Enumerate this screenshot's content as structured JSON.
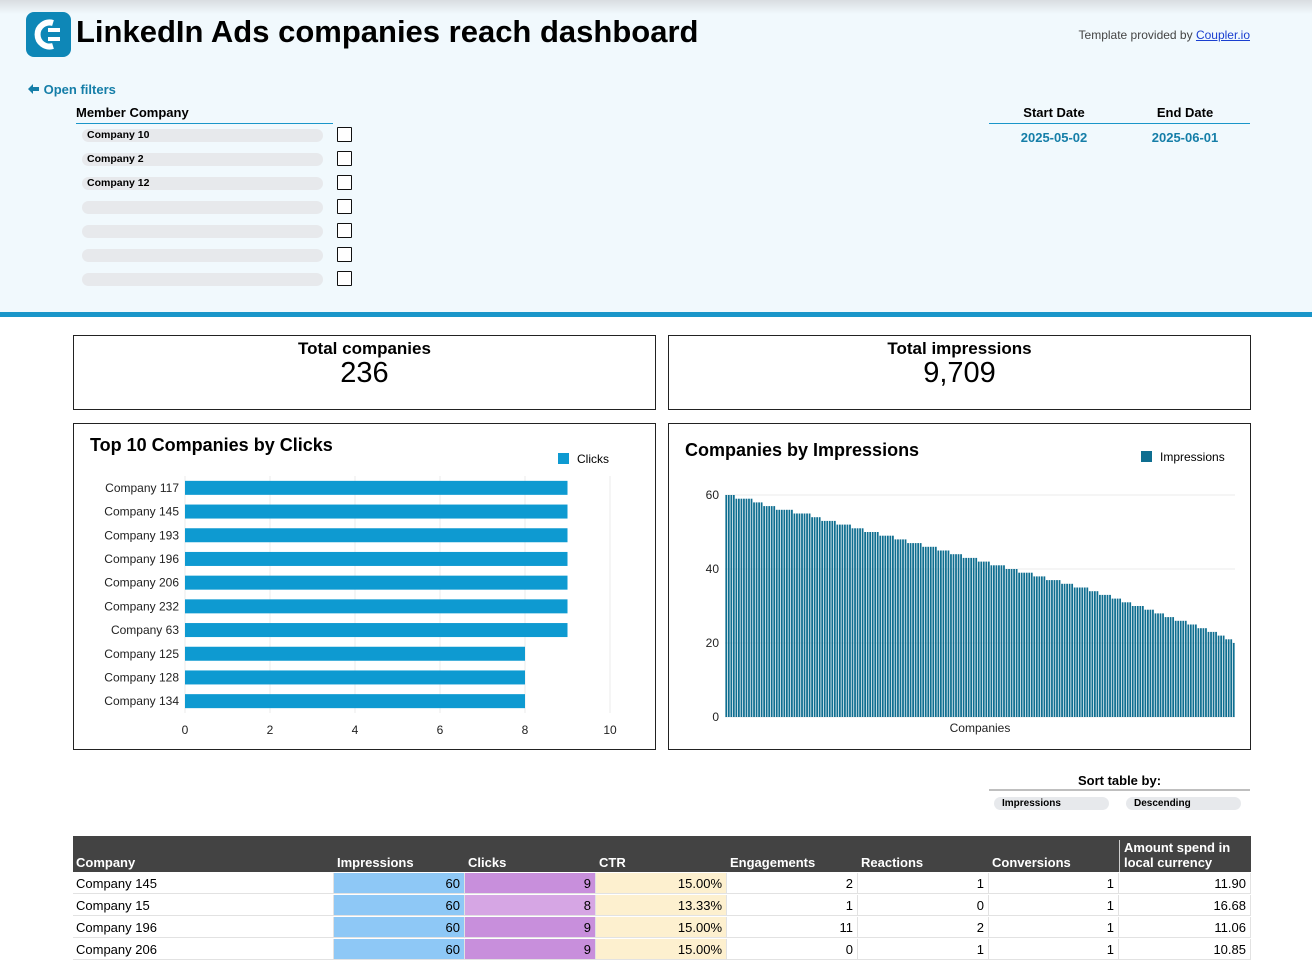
{
  "header": {
    "title": "LinkedIn Ads companies reach dashboard",
    "credit_prefix": "Template provided by",
    "credit_link": "Coupler.io",
    "open_filters": "Open filters"
  },
  "filters": {
    "member_company_label": "Member Company",
    "member_companies": [
      "Company 10",
      "Company 2",
      "Company 12",
      "",
      "",
      "",
      ""
    ],
    "start_date_label": "Start Date",
    "end_date_label": "End Date",
    "start_date": "2025-05-02",
    "end_date": "2025-06-01"
  },
  "kpis": {
    "total_companies_label": "Total companies",
    "total_companies": "236",
    "total_impressions_label": "Total impressions",
    "total_impressions": "9,709"
  },
  "chart_data": [
    {
      "type": "bar",
      "orientation": "horizontal",
      "title": "Top 10 Companies by Clicks",
      "categories": [
        "Company 117",
        "Company 145",
        "Company 193",
        "Company 196",
        "Company 206",
        "Company 232",
        "Company 63",
        "Company 125",
        "Company 128",
        "Company 134"
      ],
      "series": [
        {
          "name": "Clicks",
          "values": [
            9,
            9,
            9,
            9,
            9,
            9,
            9,
            8,
            8,
            8
          ]
        }
      ],
      "xlim": [
        0,
        10
      ],
      "xticks": [
        "0",
        "2",
        "4",
        "6",
        "8",
        "10"
      ],
      "legend": "top-right",
      "grid": true,
      "color": "#0e9ad1"
    },
    {
      "type": "bar",
      "title": "Companies by Impressions",
      "xlabel": "Companies",
      "series": [
        {
          "name": "Impressions",
          "values": [
            60,
            60,
            60,
            60,
            59,
            59,
            59,
            59,
            59,
            59,
            59,
            58,
            58,
            58,
            58,
            57,
            57,
            57,
            57,
            57,
            56,
            56,
            56,
            56,
            56,
            56,
            56,
            55,
            55,
            55,
            55,
            55,
            55,
            55,
            54,
            54,
            54,
            54,
            53,
            53,
            53,
            53,
            53,
            53,
            52,
            52,
            52,
            52,
            52,
            52,
            51,
            51,
            51,
            51,
            51,
            50,
            50,
            50,
            50,
            50,
            50,
            49,
            49,
            49,
            49,
            49,
            49,
            48,
            48,
            48,
            48,
            48,
            47,
            47,
            47,
            47,
            47,
            47,
            46,
            46,
            46,
            46,
            46,
            46,
            45,
            45,
            45,
            45,
            45,
            44,
            44,
            44,
            44,
            44,
            43,
            43,
            43,
            43,
            43,
            43,
            42,
            42,
            42,
            42,
            42,
            41,
            41,
            41,
            41,
            41,
            41,
            40,
            40,
            40,
            40,
            40,
            39,
            39,
            39,
            39,
            39,
            39,
            38,
            38,
            38,
            38,
            38,
            37,
            37,
            37,
            37,
            37,
            37,
            36,
            36,
            36,
            36,
            36,
            35,
            35,
            35,
            35,
            35,
            35,
            34,
            34,
            34,
            34,
            33,
            33,
            33,
            33,
            33,
            32,
            32,
            32,
            32,
            31,
            31,
            31,
            31,
            30,
            30,
            30,
            30,
            30,
            29,
            29,
            29,
            29,
            28,
            28,
            28,
            28,
            27,
            27,
            27,
            27,
            26,
            26,
            26,
            26,
            26,
            25,
            25,
            25,
            25,
            24,
            24,
            24,
            24,
            23,
            23,
            23,
            23,
            22,
            22,
            22,
            21,
            21,
            21,
            20
          ]
        }
      ],
      "ylim": [
        0,
        60
      ],
      "yticks": [
        "0",
        "20",
        "40",
        "60"
      ],
      "legend": "top-right",
      "grid": true,
      "color": "#0f6e90"
    }
  ],
  "table": {
    "sort_label": "Sort table by:",
    "sort_field": "Impressions",
    "sort_order": "Descending",
    "columns": [
      "Company",
      "Impressions",
      "Clicks",
      "CTR",
      "Engagements",
      "Reactions",
      "Conversions",
      "Amount spend in local currency"
    ],
    "rows": [
      [
        "Company 145",
        "60",
        "9",
        "15.00%",
        "2",
        "1",
        "1",
        "11.90"
      ],
      [
        "Company 15",
        "60",
        "8",
        "13.33%",
        "1",
        "0",
        "1",
        "16.68"
      ],
      [
        "Company 196",
        "60",
        "9",
        "15.00%",
        "11",
        "2",
        "1",
        "11.06"
      ],
      [
        "Company 206",
        "60",
        "9",
        "15.00%",
        "0",
        "1",
        "1",
        "10.85"
      ]
    ],
    "colors": {
      "impressions": "#8ec8f6",
      "clicks_9": "#c88fdc",
      "clicks_8": "#d6a6e4",
      "ctr": "#fdf0cf"
    }
  }
}
